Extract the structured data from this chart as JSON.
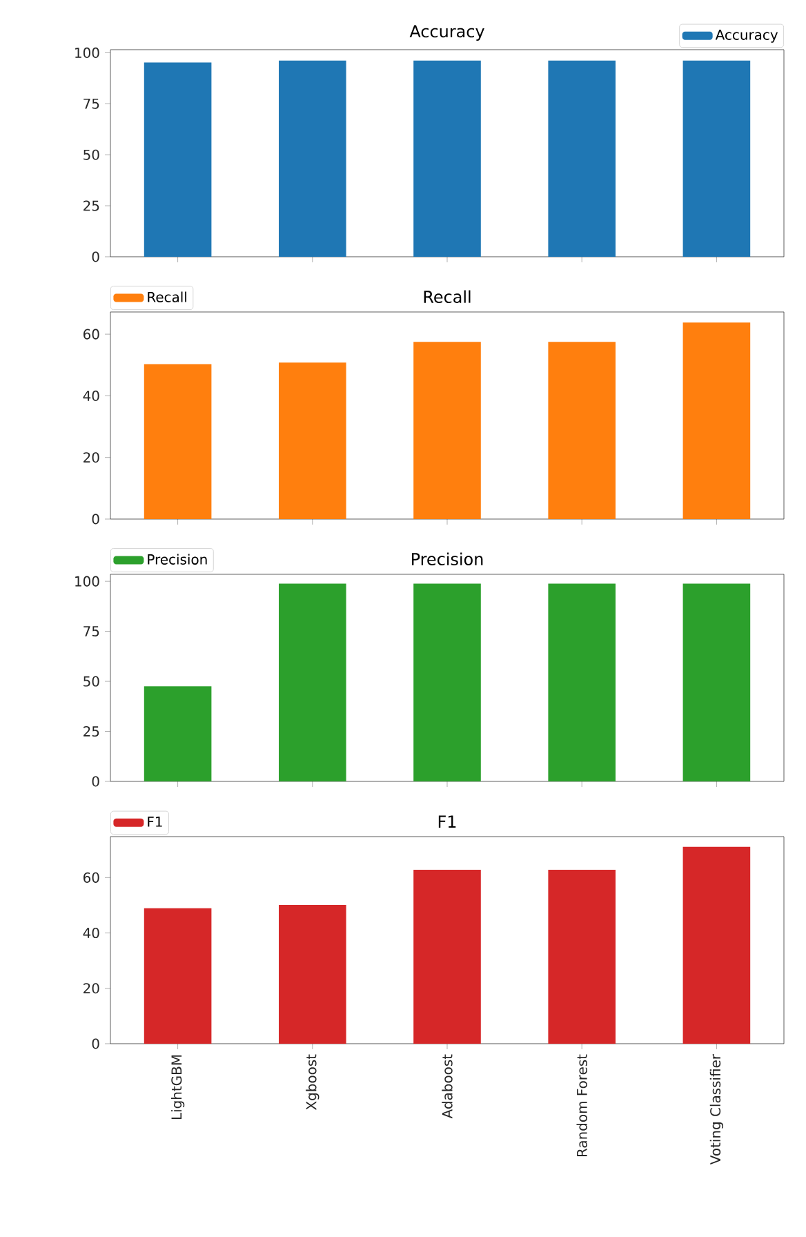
{
  "chart_data": [
    {
      "type": "bar",
      "title": "Accuracy",
      "categories": [
        null,
        null,
        null,
        null,
        null
      ],
      "series": [
        {
          "name": "Accuracy",
          "color": "#1f77b4",
          "values": [
            95.2,
            96.2,
            96.2,
            96.2,
            96.2
          ]
        }
      ],
      "ylim": [
        0,
        101.5
      ],
      "yticks": [
        0,
        25,
        50,
        75,
        100
      ],
      "legend": "top right",
      "tick_labels": "y"
    },
    {
      "type": "bar",
      "title": "Recall",
      "categories": [
        null,
        null,
        null,
        null,
        null
      ],
      "series": [
        {
          "name": "Recall",
          "color": "#ff7f0e",
          "values": [
            50.3,
            50.8,
            57.5,
            57.5,
            63.8
          ]
        }
      ],
      "ylim": [
        0,
        67.2
      ],
      "yticks": [
        0,
        20,
        40,
        60
      ],
      "legend": "top left",
      "tick_labels": "y"
    },
    {
      "type": "bar",
      "title": "Precision",
      "categories": [
        null,
        null,
        null,
        null,
        null
      ],
      "series": [
        {
          "name": "Precision",
          "color": "#2ca02c",
          "values": [
            47.5,
            98.8,
            98.8,
            98.8,
            98.8
          ]
        }
      ],
      "ylim": [
        0,
        103.5
      ],
      "yticks": [
        0,
        25,
        50,
        75,
        100
      ],
      "legend": "top left",
      "tick_labels": "y"
    },
    {
      "type": "bar",
      "title": "F1",
      "categories": [
        "LightGBM",
        "Xgboost",
        "Adaboost",
        "Random Forest",
        "Voting Classifier"
      ],
      "series": [
        {
          "name": "F1",
          "color": "#d62728",
          "values": [
            48.9,
            50.1,
            62.8,
            62.8,
            71.1
          ]
        }
      ],
      "ylim": [
        0,
        74.8
      ],
      "yticks": [
        0,
        20,
        40,
        60
      ],
      "legend": "top left"
    }
  ]
}
